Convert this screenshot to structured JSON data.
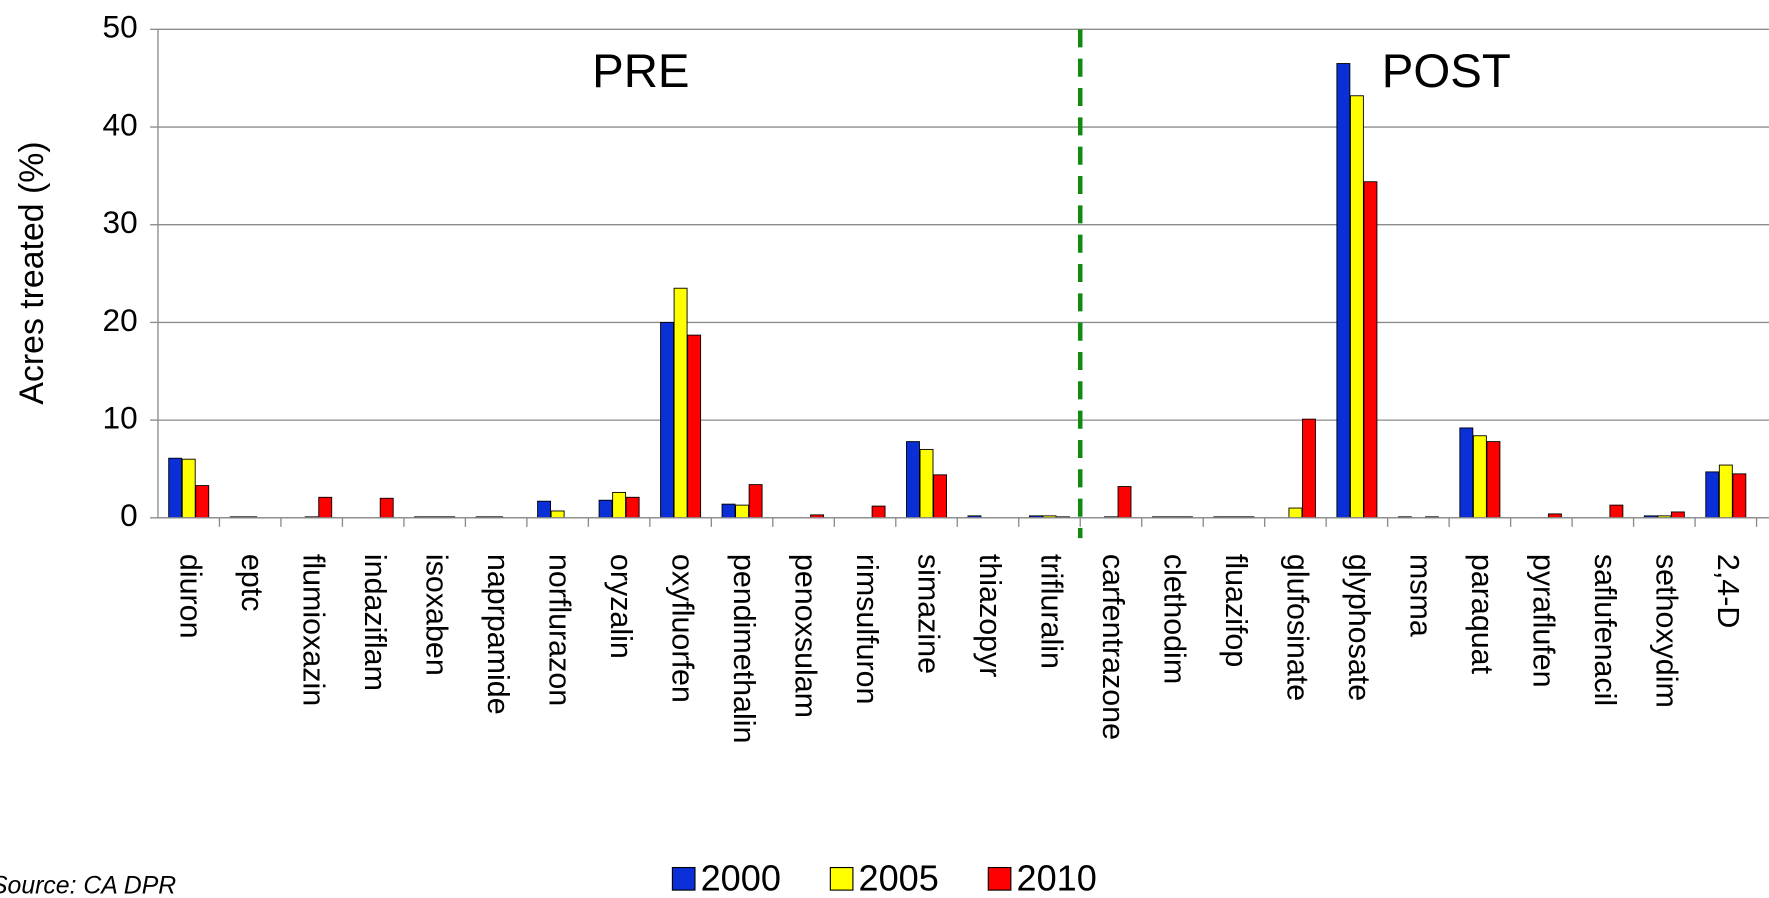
{
  "chart_data": {
    "type": "bar",
    "y_label": "Acres treated (%)",
    "annotations": [
      "PRE",
      "POST"
    ],
    "source": "Source: CA DPR",
    "categories": [
      "diuron",
      "eptc",
      "flumioxazin",
      "indaziflam",
      "isoxaben",
      "naprpamide",
      "norflurazon",
      "oryzalin",
      "oxyfluorfen",
      "pendimethalin",
      "penoxsulam",
      "rimsulfuron",
      "simazine",
      "thiazopyr",
      "trifluralin",
      "carfentrazone",
      "clethodim",
      "fluazifop",
      "glufosinate",
      "glyphosate",
      "msma",
      "paraquat",
      "pyraflufen",
      "saflufenacil",
      "sethoxydim",
      "2,4-D"
    ],
    "series": [
      {
        "name": "2000",
        "color": "#0a2fd6",
        "values": [
          6.1,
          0.1,
          0,
          0,
          0.1,
          0.1,
          1.7,
          1.8,
          20.0,
          1.4,
          0,
          0,
          7.8,
          0.2,
          0.2,
          0,
          0.1,
          0.1,
          0,
          46.5,
          0.1,
          9.2,
          0,
          0,
          0.2,
          4.7
        ]
      },
      {
        "name": "2005",
        "color": "#ffff00",
        "values": [
          6.0,
          0.1,
          0.1,
          0,
          0.1,
          0.1,
          0.7,
          2.6,
          23.5,
          1.3,
          0,
          0,
          7.0,
          0,
          0.2,
          0.1,
          0.1,
          0.1,
          1.0,
          43.2,
          0,
          8.4,
          0,
          0,
          0.2,
          5.4
        ]
      },
      {
        "name": "2010",
        "color": "#ff0000",
        "values": [
          3.3,
          0,
          2.1,
          2.0,
          0.1,
          0,
          0,
          2.1,
          18.7,
          3.4,
          0.3,
          1.2,
          4.4,
          0,
          0.1,
          3.2,
          0.1,
          0.1,
          10.1,
          34.4,
          0.1,
          7.8,
          0.4,
          1.3,
          0.6,
          4.5
        ]
      }
    ],
    "ylim": [
      0,
      50
    ],
    "yticks": [
      0,
      10,
      20,
      30,
      40,
      50
    ],
    "grid": true
  }
}
